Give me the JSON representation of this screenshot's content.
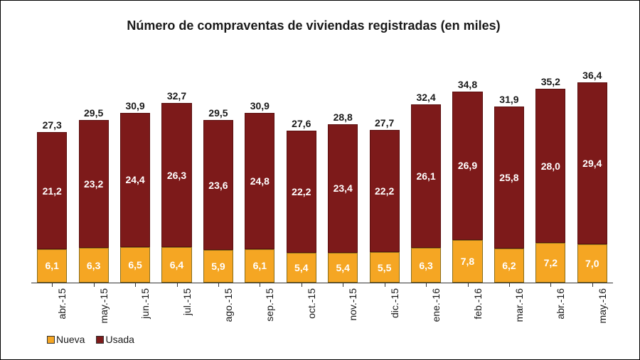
{
  "chart": {
    "type": "bar",
    "stacked": true,
    "title": "Número de compraventas de viviendas registradas (en miles)",
    "title_fontsize": 18,
    "title_fontweight": "bold",
    "background_color": "#ffffff",
    "outer_border_color": "#000000",
    "ylim": [
      0,
      40
    ],
    "axis_color": "#333333",
    "bar_width_ratio": 0.72,
    "categories": [
      "abr.-15",
      "may.-15",
      "jun.-15",
      "jul.-15",
      "ago.-15",
      "sep.-15",
      "oct.-15",
      "nov.-15",
      "dic.-15",
      "ene.-16",
      "feb.-16",
      "mar.-16",
      "abr.-16",
      "may.-16"
    ],
    "series": [
      {
        "name": "Nueva",
        "color": "#f5a623",
        "border_color": "#8a6d1a",
        "values": [
          6.1,
          6.3,
          6.5,
          6.4,
          5.9,
          6.1,
          5.4,
          5.4,
          5.5,
          6.3,
          7.8,
          6.2,
          7.2,
          7.0
        ]
      },
      {
        "name": "Usada",
        "color": "#7d1a1a",
        "border_color": "#5a0f0f",
        "values": [
          21.2,
          23.2,
          24.4,
          26.3,
          23.6,
          24.8,
          22.2,
          23.4,
          22.2,
          26.1,
          26.9,
          25.8,
          28.0,
          29.4
        ]
      }
    ],
    "totals": [
      27.3,
      29.5,
      30.9,
      32.7,
      29.5,
      30.9,
      27.6,
      28.8,
      27.7,
      32.4,
      34.8,
      31.9,
      35.2,
      36.4
    ],
    "value_label_fontsize": 14,
    "value_label_color": "#ffffff",
    "total_label_fontsize": 14,
    "total_label_color": "#1a1a1a",
    "xlabel_fontsize": 14,
    "xlabel_rotation_deg": -90,
    "decimal_separator": ",",
    "decimals": 1,
    "legend": {
      "position": "bottom-left",
      "fontsize": 14,
      "items": [
        {
          "label": "Nueva",
          "color": "#f5a623"
        },
        {
          "label": "Usada",
          "color": "#7d1a1a"
        }
      ]
    }
  }
}
